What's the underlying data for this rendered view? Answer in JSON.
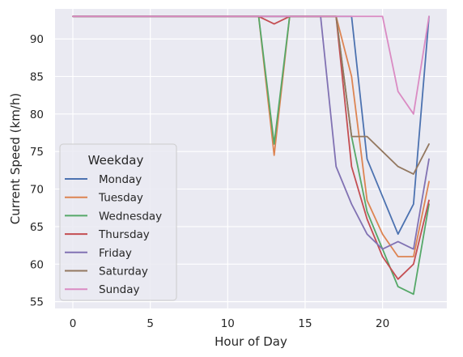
{
  "chart_data": {
    "type": "line",
    "title": "",
    "xlabel": "Hour of Day",
    "ylabel": "Current Speed (km/h)",
    "xlim": [
      -1.15,
      24.15
    ],
    "ylim": [
      54.1,
      94.0
    ],
    "xticks": [
      0,
      5,
      10,
      15,
      20
    ],
    "yticks": [
      55,
      60,
      65,
      70,
      75,
      80,
      85,
      90
    ],
    "grid": true,
    "legend": {
      "title": "Weekday",
      "position": "lower-left"
    },
    "x": [
      0,
      1,
      2,
      3,
      4,
      5,
      6,
      7,
      8,
      9,
      10,
      11,
      12,
      13,
      14,
      15,
      16,
      17,
      18,
      19,
      20,
      21,
      22,
      23
    ],
    "series": [
      {
        "name": "Monday",
        "color": "#4c72b0",
        "values": [
          93,
          93,
          93,
          93,
          93,
          93,
          93,
          93,
          93,
          93,
          93,
          93,
          93,
          93,
          93,
          93,
          93,
          93,
          93,
          74,
          69,
          64,
          68,
          93
        ]
      },
      {
        "name": "Tuesday",
        "color": "#dd8452",
        "values": [
          93,
          93,
          93,
          93,
          93,
          93,
          93,
          93,
          93,
          93,
          93,
          93,
          93,
          74.5,
          93,
          93,
          93,
          93,
          85,
          68.5,
          64,
          61,
          61,
          71
        ]
      },
      {
        "name": "Wednesday",
        "color": "#55a868",
        "values": [
          93,
          93,
          93,
          93,
          93,
          93,
          93,
          93,
          93,
          93,
          93,
          93,
          93,
          76,
          93,
          93,
          93,
          93,
          77,
          67,
          62,
          57,
          56,
          68
        ]
      },
      {
        "name": "Thursday",
        "color": "#c44e52",
        "values": [
          93,
          93,
          93,
          93,
          93,
          93,
          93,
          93,
          93,
          93,
          93,
          93,
          93,
          92,
          93,
          93,
          93,
          93,
          73,
          66,
          61,
          58,
          60,
          68.5
        ]
      },
      {
        "name": "Friday",
        "color": "#8172b3",
        "values": [
          93,
          93,
          93,
          93,
          93,
          93,
          93,
          93,
          93,
          93,
          93,
          93,
          93,
          93,
          93,
          93,
          93,
          73,
          68,
          64,
          62,
          63,
          62,
          74
        ]
      },
      {
        "name": "Saturday",
        "color": "#937860",
        "values": [
          93,
          93,
          93,
          93,
          93,
          93,
          93,
          93,
          93,
          93,
          93,
          93,
          93,
          93,
          93,
          93,
          93,
          93,
          77,
          77,
          75,
          73,
          72,
          76
        ]
      },
      {
        "name": "Sunday",
        "color": "#da8bc3",
        "values": [
          93,
          93,
          93,
          93,
          93,
          93,
          93,
          93,
          93,
          93,
          93,
          93,
          93,
          93,
          93,
          93,
          93,
          93,
          93,
          93,
          93,
          83,
          80,
          93
        ]
      }
    ]
  }
}
